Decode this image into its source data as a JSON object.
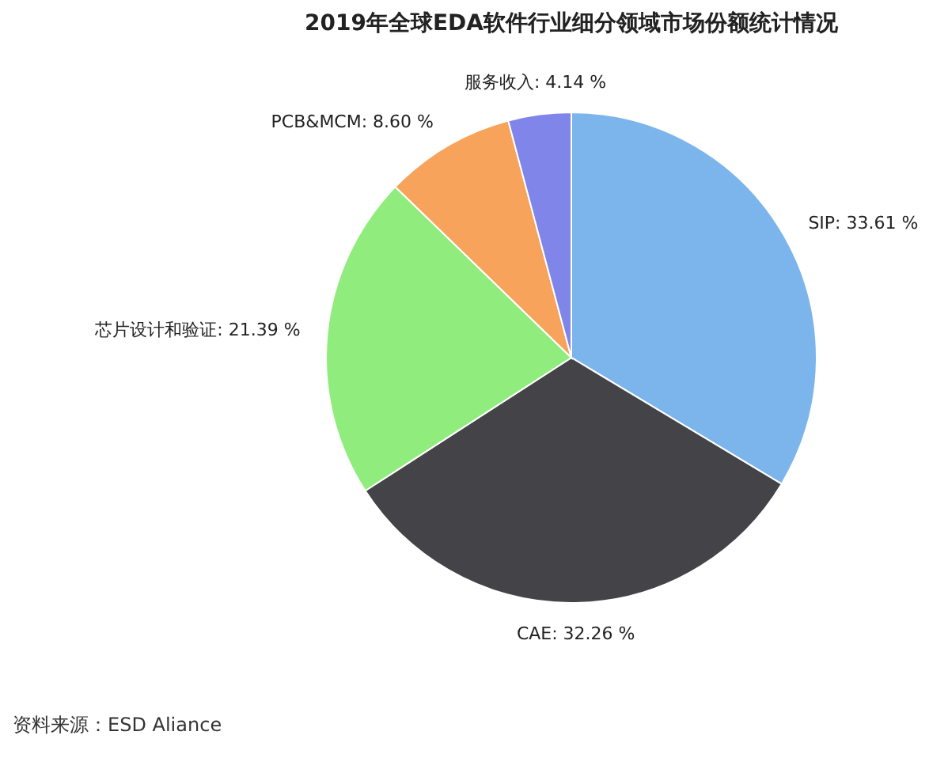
{
  "chart_data": {
    "type": "pie",
    "title": "2019年全球EDA软件行业细分领域市场份额统计情况",
    "categories": [
      "SIP",
      "CAE",
      "芯片设计和验证",
      "PCB&MCM",
      "服务收入"
    ],
    "values": [
      33.61,
      32.26,
      21.39,
      8.6,
      4.14
    ],
    "colors": [
      "#7cb5ec",
      "#434348",
      "#90ed7d",
      "#f7a35c",
      "#8085e9"
    ],
    "value_labels": [
      "33.61 %",
      "32.26 %",
      "21.39 %",
      "8.60 %",
      "4.14 %"
    ],
    "legend": false,
    "annotations": [
      "资料来源：ESD Aliance"
    ]
  }
}
